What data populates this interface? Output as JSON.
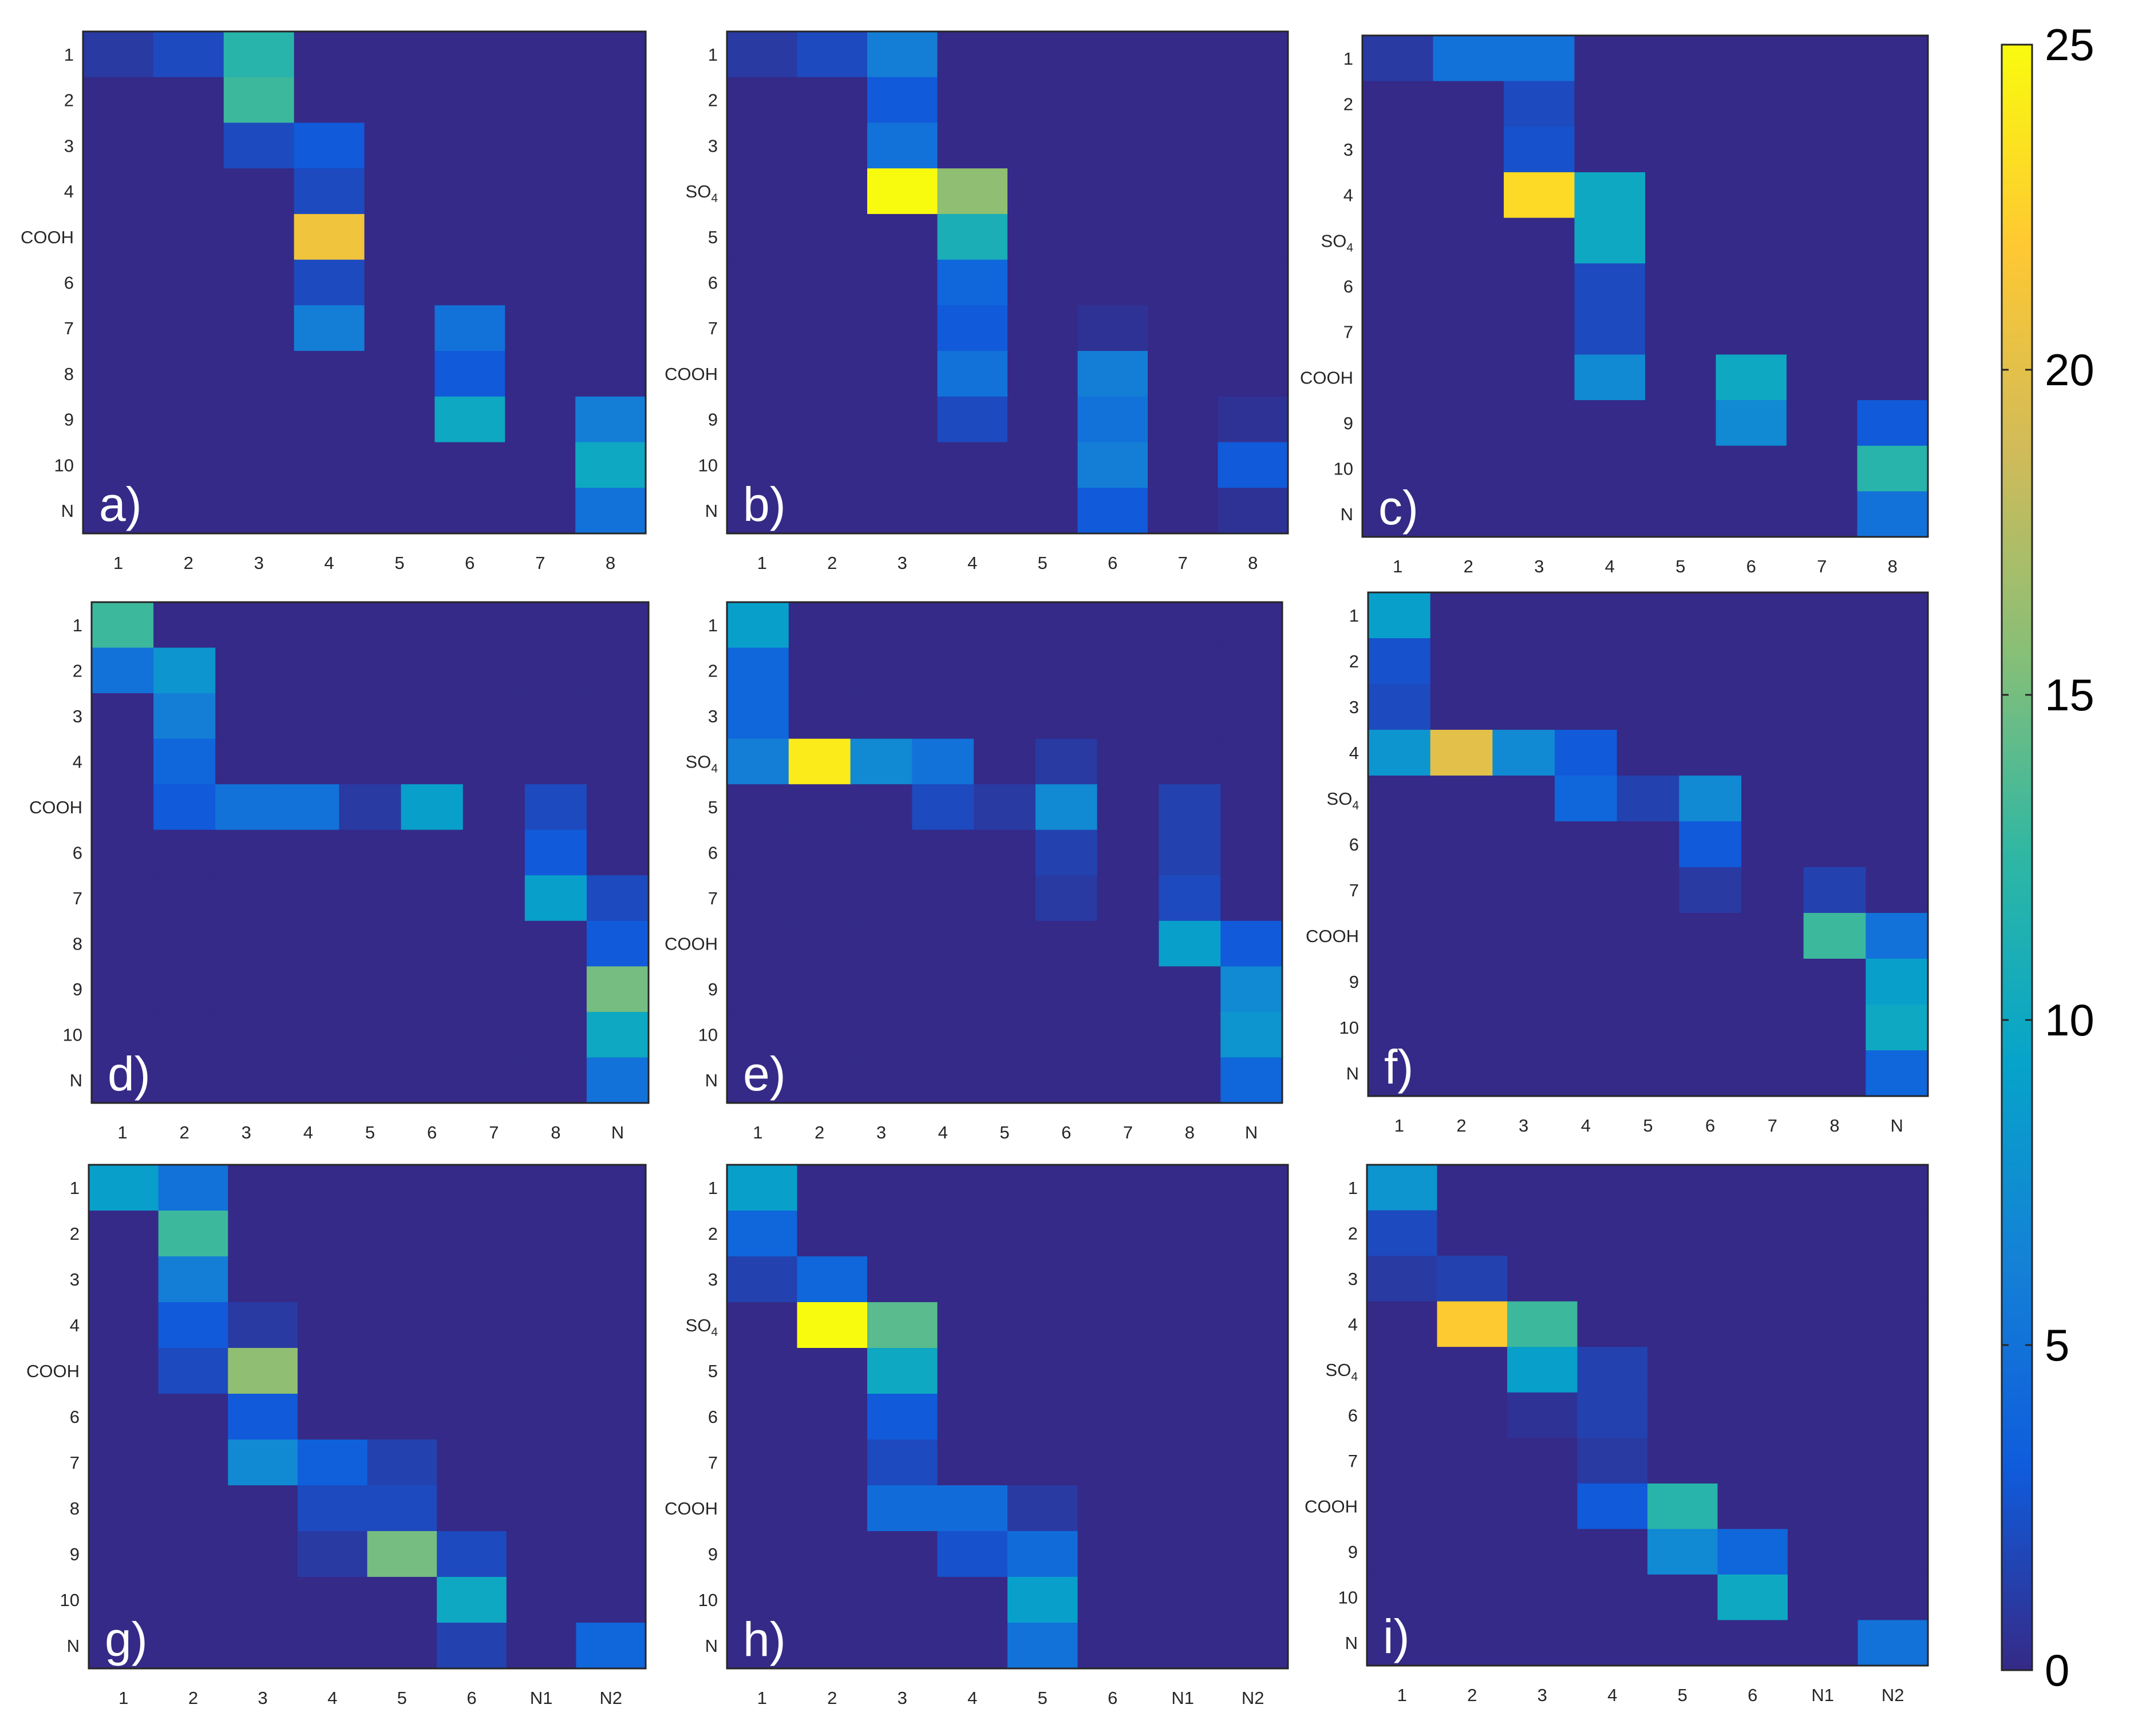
{
  "colormap": {
    "name": "parula",
    "stops": [
      "#352a87",
      "#0f5cdd",
      "#1481d6",
      "#06a4ca",
      "#2eb7a4",
      "#87bf77",
      "#d1bb59",
      "#fec832",
      "#f9fb0e"
    ],
    "range": [
      0,
      25
    ]
  },
  "colorbar": {
    "ticks": [
      0,
      5,
      10,
      15,
      20,
      25
    ],
    "tick_labels": [
      "0",
      "5",
      "10",
      "15",
      "20",
      "25"
    ]
  },
  "chart_data": [
    {
      "type": "heatmap",
      "panel_label": "a)",
      "x_labels": [
        "1",
        "2",
        "3",
        "4",
        "5",
        "6",
        "7",
        "8"
      ],
      "y_labels": [
        "1",
        "2",
        "3",
        "4",
        "COOH",
        "6",
        "7",
        "8",
        "9",
        "10",
        "N"
      ],
      "values": [
        [
          1,
          2,
          12,
          0,
          0,
          0,
          0,
          0
        ],
        [
          0,
          0,
          13,
          0,
          0,
          0,
          0,
          0
        ],
        [
          0,
          0,
          2,
          3,
          0,
          0,
          0,
          0
        ],
        [
          0,
          0,
          0,
          2,
          0,
          0,
          0,
          0
        ],
        [
          0,
          0,
          0,
          21,
          0,
          0,
          0,
          0
        ],
        [
          0,
          0,
          0,
          2,
          0,
          0,
          0,
          0
        ],
        [
          0,
          0,
          0,
          6,
          0,
          5,
          0,
          0
        ],
        [
          0,
          0,
          0,
          0,
          0,
          3,
          0,
          0
        ],
        [
          0,
          0,
          0,
          0,
          0,
          10,
          0,
          6
        ],
        [
          0,
          0,
          0,
          0,
          0,
          0,
          0,
          10
        ],
        [
          0,
          0,
          0,
          0,
          0,
          0,
          0,
          5
        ]
      ]
    },
    {
      "type": "heatmap",
      "panel_label": "b)",
      "x_labels": [
        "1",
        "2",
        "3",
        "4",
        "5",
        "6",
        "7",
        "8"
      ],
      "y_labels": [
        "1",
        "2",
        "3",
        "SO4",
        "5",
        "6",
        "7",
        "COOH",
        "9",
        "10",
        "N"
      ],
      "values": [
        [
          1,
          2,
          6,
          0,
          0,
          0,
          0,
          0
        ],
        [
          0,
          0,
          3,
          0,
          0,
          0,
          0,
          0
        ],
        [
          0,
          0,
          5,
          0,
          0,
          0,
          0,
          0
        ],
        [
          0,
          0,
          25,
          16,
          0,
          0,
          0,
          0
        ],
        [
          0,
          0,
          0,
          11,
          0,
          0,
          0,
          0
        ],
        [
          0,
          0,
          0,
          4,
          0,
          0,
          0,
          0
        ],
        [
          0,
          0,
          0,
          3,
          0,
          0.5,
          0,
          0
        ],
        [
          0,
          0,
          0,
          5,
          0,
          6,
          0,
          0
        ],
        [
          0,
          0,
          0,
          2,
          0,
          5,
          0,
          0.5
        ],
        [
          0,
          0,
          0,
          0,
          0,
          6,
          0,
          3
        ],
        [
          0,
          0,
          0,
          0,
          0,
          3,
          0,
          0.5
        ]
      ]
    },
    {
      "type": "heatmap",
      "panel_label": "c)",
      "x_labels": [
        "1",
        "2",
        "3",
        "4",
        "5",
        "6",
        "7",
        "8"
      ],
      "y_labels": [
        "1",
        "2",
        "3",
        "4",
        "SO4",
        "6",
        "7",
        "COOH",
        "9",
        "10",
        "N"
      ],
      "values": [
        [
          1,
          5,
          5,
          0,
          0,
          0,
          0,
          0
        ],
        [
          0,
          0,
          2,
          0,
          0,
          0,
          0,
          0
        ],
        [
          0,
          0,
          2.5,
          0,
          0,
          0,
          0,
          0
        ],
        [
          0,
          0,
          23,
          10,
          0,
          0,
          0,
          0
        ],
        [
          0,
          0,
          0,
          10,
          0,
          0,
          0,
          0
        ],
        [
          0,
          0,
          0,
          2,
          0,
          0,
          0,
          0
        ],
        [
          0,
          0,
          0,
          2,
          0,
          0,
          0,
          0
        ],
        [
          0,
          0,
          0,
          7,
          0,
          10,
          0,
          0
        ],
        [
          0,
          0,
          0,
          0,
          0,
          7,
          0,
          3
        ],
        [
          0,
          0,
          0,
          0,
          0,
          0,
          0,
          12
        ],
        [
          0,
          0,
          0,
          0,
          0,
          0,
          0,
          5
        ]
      ]
    },
    {
      "type": "heatmap",
      "panel_label": "d)",
      "x_labels": [
        "1",
        "2",
        "3",
        "4",
        "5",
        "6",
        "7",
        "8",
        "N"
      ],
      "y_labels": [
        "1",
        "2",
        "3",
        "4",
        "COOH",
        "6",
        "7",
        "8",
        "9",
        "10",
        "N"
      ],
      "values": [
        [
          13,
          0,
          0,
          0,
          0,
          0,
          0,
          0,
          0
        ],
        [
          5,
          8,
          0,
          0,
          0,
          0,
          0,
          0,
          0
        ],
        [
          0,
          6,
          0,
          0,
          0,
          0,
          0,
          0,
          0
        ],
        [
          0,
          4,
          0,
          0,
          0,
          0,
          0,
          0,
          0
        ],
        [
          0,
          3,
          5,
          5,
          1,
          9,
          0,
          2,
          0
        ],
        [
          0,
          0,
          0,
          0,
          0,
          0,
          0,
          3,
          0
        ],
        [
          0,
          0,
          0,
          0,
          0,
          0,
          0,
          9,
          2
        ],
        [
          0,
          0,
          0,
          0,
          0,
          0,
          0,
          0,
          3
        ],
        [
          0,
          0,
          0,
          0,
          0,
          0,
          0,
          0,
          15
        ],
        [
          0,
          0,
          0,
          0,
          0,
          0,
          0,
          0,
          10
        ],
        [
          0,
          0,
          0,
          0,
          0,
          0,
          0,
          0,
          5
        ]
      ]
    },
    {
      "type": "heatmap",
      "panel_label": "e)",
      "x_labels": [
        "1",
        "2",
        "3",
        "4",
        "5",
        "6",
        "7",
        "8",
        "N"
      ],
      "y_labels": [
        "1",
        "2",
        "3",
        "SO4",
        "5",
        "6",
        "7",
        "COOH",
        "9",
        "10",
        "N"
      ],
      "values": [
        [
          9,
          0,
          0,
          0,
          0,
          0,
          0,
          0,
          0
        ],
        [
          4,
          0,
          0,
          0,
          0,
          0,
          0,
          0,
          0
        ],
        [
          4,
          0,
          0,
          0,
          0,
          0,
          0,
          0,
          0
        ],
        [
          6,
          24,
          7,
          5,
          0,
          1,
          0,
          0,
          0
        ],
        [
          0,
          0,
          0,
          2,
          1,
          7,
          0,
          1.5,
          0
        ],
        [
          0,
          0,
          0,
          0,
          0,
          1.5,
          0,
          1.5,
          0
        ],
        [
          0,
          0,
          0,
          0,
          0,
          1,
          0,
          2,
          0
        ],
        [
          0,
          0,
          0,
          0,
          0,
          0,
          0,
          9,
          3
        ],
        [
          0,
          0,
          0,
          0,
          0,
          0,
          0,
          0,
          7
        ],
        [
          0,
          0,
          0,
          0,
          0,
          0,
          0,
          0,
          8
        ],
        [
          0,
          0,
          0,
          0,
          0,
          0,
          0,
          0,
          4
        ]
      ]
    },
    {
      "type": "heatmap",
      "panel_label": "f)",
      "x_labels": [
        "1",
        "2",
        "3",
        "4",
        "5",
        "6",
        "7",
        "8",
        "N"
      ],
      "y_labels": [
        "1",
        "2",
        "3",
        "4",
        "SO4",
        "6",
        "7",
        "COOH",
        "9",
        "10",
        "N"
      ],
      "values": [
        [
          9,
          0,
          0,
          0,
          0,
          0,
          0,
          0,
          0
        ],
        [
          2.5,
          0,
          0,
          0,
          0,
          0,
          0,
          0,
          0
        ],
        [
          2,
          0,
          0,
          0,
          0,
          0,
          0,
          0,
          0
        ],
        [
          8,
          20,
          7,
          3,
          0,
          0,
          0,
          0,
          0
        ],
        [
          0,
          0,
          0,
          4,
          1.5,
          7,
          0,
          0,
          0
        ],
        [
          0,
          0,
          0,
          0,
          0,
          3,
          0,
          0,
          0
        ],
        [
          0,
          0,
          0,
          0,
          0,
          1,
          0,
          1.5,
          0
        ],
        [
          0,
          0,
          0,
          0,
          0,
          0,
          0,
          13,
          5
        ],
        [
          0,
          0,
          0,
          0,
          0,
          0,
          0,
          0,
          9
        ],
        [
          0,
          0,
          0,
          0,
          0,
          0,
          0,
          0,
          10
        ],
        [
          0,
          0,
          0,
          0,
          0,
          0,
          0,
          0,
          4
        ]
      ]
    },
    {
      "type": "heatmap",
      "panel_label": "g)",
      "x_labels": [
        "1",
        "2",
        "3",
        "4",
        "5",
        "6",
        "N1",
        "N2"
      ],
      "y_labels": [
        "1",
        "2",
        "3",
        "4",
        "COOH",
        "6",
        "7",
        "8",
        "9",
        "10",
        "N"
      ],
      "values": [
        [
          9,
          5,
          0,
          0,
          0,
          0,
          0,
          0
        ],
        [
          0,
          13,
          0,
          0,
          0,
          0,
          0,
          0
        ],
        [
          0,
          6,
          0,
          0,
          0,
          0,
          0,
          0
        ],
        [
          0,
          3,
          1,
          0,
          0,
          0,
          0,
          0
        ],
        [
          0,
          2,
          16,
          0,
          0,
          0,
          0,
          0
        ],
        [
          0,
          0,
          3,
          0,
          0,
          0,
          0,
          0
        ],
        [
          0,
          0,
          7,
          3.5,
          1.5,
          0,
          0,
          0
        ],
        [
          0,
          0,
          0,
          2,
          2,
          0,
          0,
          0
        ],
        [
          0,
          0,
          0,
          1,
          15,
          2,
          0,
          0
        ],
        [
          0,
          0,
          0,
          0,
          0,
          10,
          0,
          0
        ],
        [
          0,
          0,
          0,
          0,
          0,
          1.5,
          0,
          4
        ]
      ]
    },
    {
      "type": "heatmap",
      "panel_label": "h)",
      "x_labels": [
        "1",
        "2",
        "3",
        "4",
        "5",
        "6",
        "N1",
        "N2"
      ],
      "y_labels": [
        "1",
        "2",
        "3",
        "SO4",
        "5",
        "6",
        "7",
        "COOH",
        "9",
        "10",
        "N"
      ],
      "values": [
        [
          9,
          0,
          0,
          0,
          0,
          0,
          0,
          0
        ],
        [
          4,
          0,
          0,
          0,
          0,
          0,
          0,
          0
        ],
        [
          1.5,
          4,
          0,
          0,
          0,
          0,
          0,
          0
        ],
        [
          0,
          25,
          14,
          0,
          0,
          0,
          0,
          0
        ],
        [
          0,
          0,
          10,
          0,
          0,
          0,
          0,
          0
        ],
        [
          0,
          0,
          3,
          0,
          0,
          0,
          0,
          0
        ],
        [
          0,
          0,
          2,
          0,
          0,
          0,
          0,
          0
        ],
        [
          0,
          0,
          4.5,
          4.5,
          1,
          0,
          0,
          0
        ],
        [
          0,
          0,
          0,
          2.5,
          4.5,
          0,
          0,
          0
        ],
        [
          0,
          0,
          0,
          0,
          9,
          0,
          0,
          0
        ],
        [
          0,
          0,
          0,
          0,
          5,
          0,
          0,
          0
        ]
      ]
    },
    {
      "type": "heatmap",
      "panel_label": "i)",
      "x_labels": [
        "1",
        "2",
        "3",
        "4",
        "5",
        "6",
        "N1",
        "N2"
      ],
      "y_labels": [
        "1",
        "2",
        "3",
        "4",
        "SO4",
        "6",
        "7",
        "COOH",
        "9",
        "10",
        "N"
      ],
      "values": [
        [
          8,
          0,
          0,
          0,
          0,
          0,
          0,
          0
        ],
        [
          2,
          0,
          0,
          0,
          0,
          0,
          0,
          0
        ],
        [
          1,
          1.5,
          0,
          0,
          0,
          0,
          0,
          0
        ],
        [
          0,
          22,
          13,
          0,
          0,
          0,
          0,
          0
        ],
        [
          0,
          0,
          9,
          1.5,
          0,
          0,
          0,
          0
        ],
        [
          0,
          0,
          0.5,
          1.5,
          0,
          0,
          0,
          0
        ],
        [
          0,
          0,
          0,
          1,
          0,
          0,
          0,
          0
        ],
        [
          0,
          0,
          0,
          3,
          12,
          0,
          0,
          0
        ],
        [
          0,
          0,
          0,
          0,
          7,
          4,
          0,
          0
        ],
        [
          0,
          0,
          0,
          0,
          0,
          10,
          0,
          0
        ],
        [
          0,
          0,
          0,
          0,
          0,
          0,
          0,
          5
        ]
      ]
    }
  ]
}
